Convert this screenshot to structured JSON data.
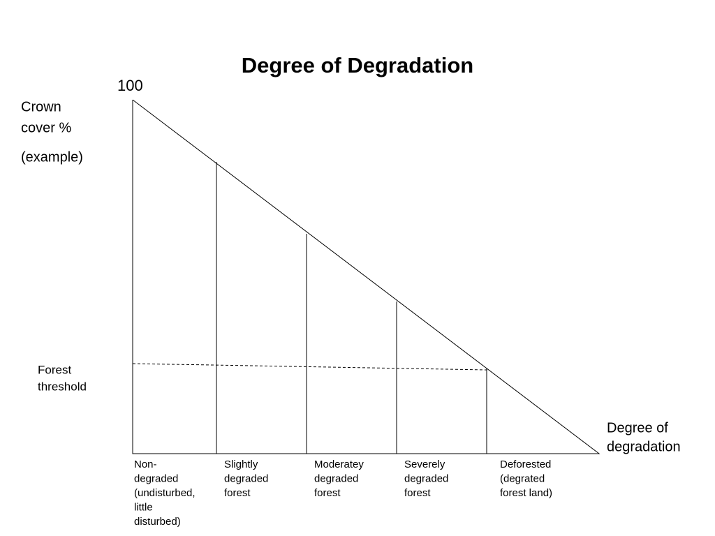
{
  "title": "Degree of Degradation",
  "y_axis": {
    "top_label": "100",
    "label_lines": [
      "Crown",
      "cover %"
    ],
    "note": "(example)"
  },
  "threshold_label_lines": [
    "Forest",
    "threshold"
  ],
  "x_axis": {
    "label_lines": [
      "Degree of",
      "degradation"
    ]
  },
  "classes": [
    {
      "lines": [
        "Non-",
        "degraded",
        "(undisturbed,",
        "little",
        "disturbed)"
      ]
    },
    {
      "lines": [
        "Slightly",
        "degraded",
        "forest"
      ]
    },
    {
      "lines": [
        "Moderatey",
        "degraded",
        "forest"
      ]
    },
    {
      "lines": [
        "Severely",
        "degraded",
        "forest"
      ]
    },
    {
      "lines": [
        "Deforested",
        "(degrated",
        "forest land)"
      ]
    }
  ]
}
